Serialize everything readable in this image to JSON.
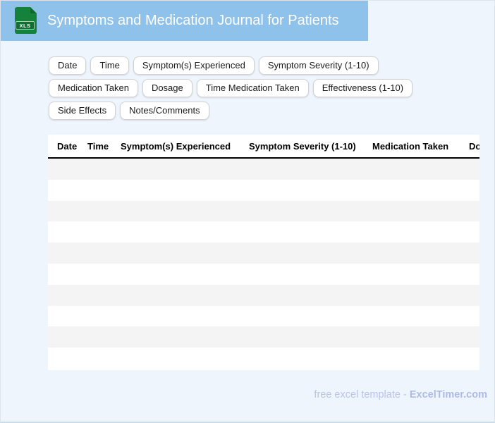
{
  "header": {
    "title": "Symptoms and Medication Journal for Patients",
    "icon_label": "XLS",
    "bar_color": "#8fc2eb",
    "icon_color": "#15823b"
  },
  "chips": {
    "rows": [
      [
        "Date",
        "Time",
        "Symptom(s) Experienced",
        "Symptom Severity (1-10)"
      ],
      [
        "Medication Taken",
        "Dosage",
        "Time Medication Taken",
        "Effectiveness (1-10)"
      ],
      [
        "Side Effects",
        "Notes/Comments"
      ]
    ]
  },
  "table": {
    "columns": [
      "Date",
      "Time",
      "Symptom(s) Experienced",
      "Symptom Severity (1-10)",
      "Medication Taken",
      "Dosage"
    ],
    "row_count": 10,
    "stripe_color": "#f4f4f4"
  },
  "footer": {
    "text": "free excel template - ",
    "brand": "ExcelTimer.com"
  }
}
